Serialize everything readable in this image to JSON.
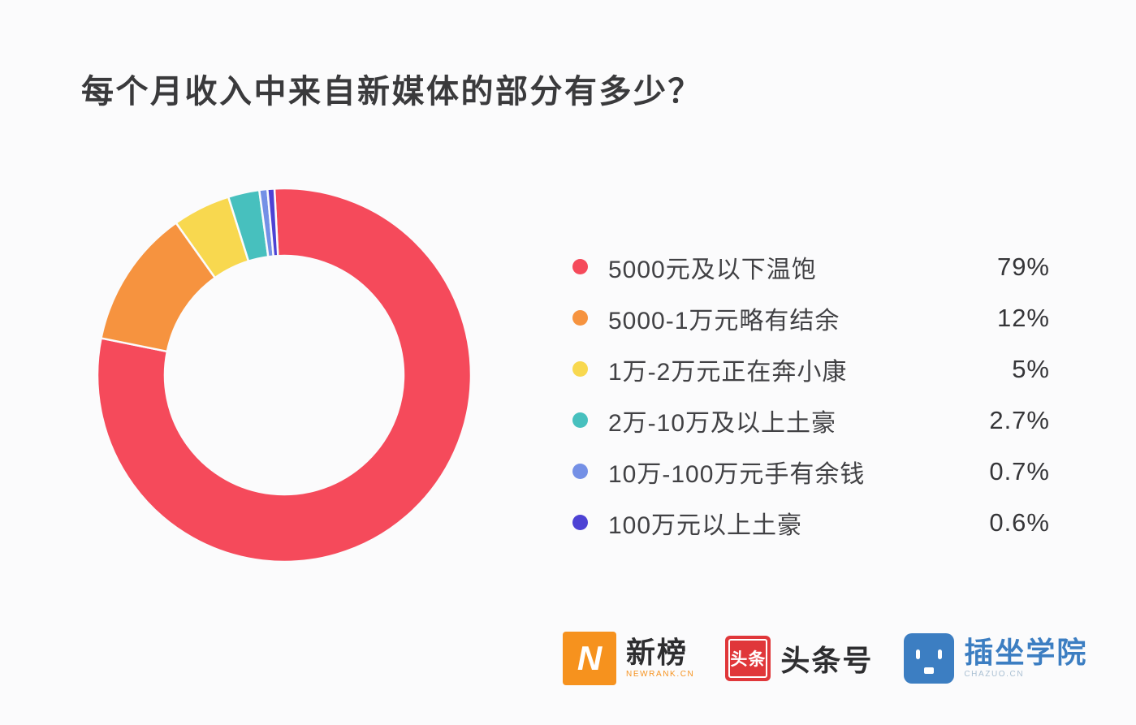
{
  "page": {
    "background": "#FBFBFC"
  },
  "title": "每个月收入中来自新媒体的部分有多少？",
  "chart_data": {
    "type": "pie",
    "subtype": "donut",
    "title": "每个月收入中来自新媒体的部分有多少？",
    "categories": [
      "5000元及以下温饱",
      "5000-1万元略有结余",
      "1万-2万元正在奔小康",
      "2万-10万及以上土豪",
      "10万-100万元手有余钱",
      "100万元以上土豪"
    ],
    "values": [
      79,
      12,
      5,
      2.7,
      0.7,
      0.6
    ],
    "value_labels": [
      "79%",
      "12%",
      "5%",
      "2.7%",
      "0.7%",
      "0.6%"
    ],
    "unit": "%",
    "colors": [
      "#F54A5B",
      "#F6933F",
      "#F8D84F",
      "#47C0BE",
      "#7490E6",
      "#4D42D4"
    ],
    "start_angle_deg": -3,
    "direction": "clockwise",
    "inner_radius_ratio": 0.64,
    "slice_gap_color": "#FBFBFC",
    "legend_position": "right"
  },
  "footer": {
    "logos": [
      {
        "name": "newrank",
        "icon": "newrank-n-icon",
        "icon_letter": "N",
        "text": "新榜",
        "subtext": "NEWRANK.CN",
        "icon_color": "#F6921E",
        "text_color": "#2E2E30"
      },
      {
        "name": "toutiao",
        "icon": "toutiao-icon",
        "icon_text": "头条",
        "text": "头条号",
        "icon_color": "#E0373A",
        "text_color": "#2E2E30"
      },
      {
        "name": "chazuo",
        "icon": "chazuo-face-icon",
        "text": "插坐学院",
        "subtext": "CHAZUO.CN",
        "icon_color": "#3C7EC2",
        "text_color": "#3C7EC2"
      }
    ]
  }
}
